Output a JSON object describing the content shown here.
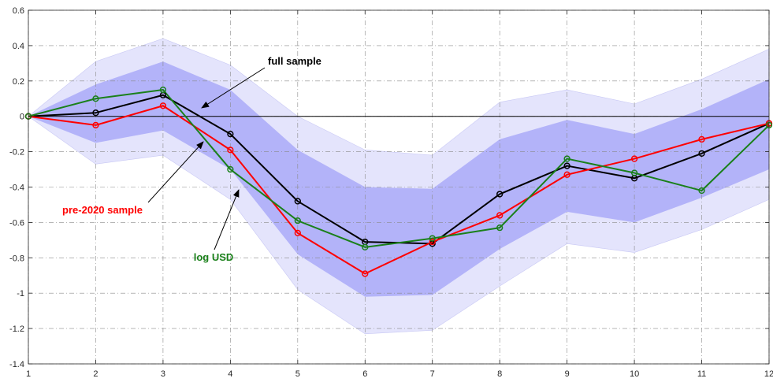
{
  "chart_data": {
    "type": "line",
    "x": [
      1,
      2,
      3,
      4,
      5,
      6,
      7,
      8,
      9,
      10,
      11,
      12
    ],
    "xlim": [
      1,
      12
    ],
    "ylim": [
      -1.4,
      0.6
    ],
    "xticks": [
      "1",
      "2",
      "3",
      "4",
      "5",
      "6",
      "7",
      "8",
      "9",
      "10",
      "11",
      "12"
    ],
    "yticks": [
      "0.6",
      "0.4",
      "0.2",
      "0",
      "-0.2",
      "-0.4",
      "-0.6",
      "-0.8",
      "-1",
      "-1.2",
      "-1.4"
    ],
    "grid": true,
    "bands": {
      "outer": {
        "upper": [
          0.0,
          0.31,
          0.44,
          0.29,
          0.0,
          -0.19,
          -0.22,
          0.08,
          0.15,
          0.07,
          0.21,
          0.38
        ],
        "lower": [
          0.0,
          -0.27,
          -0.22,
          -0.47,
          -0.98,
          -1.23,
          -1.21,
          -0.96,
          -0.72,
          -0.77,
          -0.64,
          -0.47
        ],
        "color": "#e4e4fc"
      },
      "inner": {
        "upper": [
          0.0,
          0.18,
          0.31,
          0.15,
          -0.19,
          -0.4,
          -0.41,
          -0.13,
          -0.02,
          -0.1,
          0.04,
          0.21
        ],
        "lower": [
          0.0,
          -0.15,
          -0.08,
          -0.3,
          -0.78,
          -1.02,
          -1.01,
          -0.75,
          -0.54,
          -0.6,
          -0.46,
          -0.3
        ],
        "color": "#b3b3f9"
      }
    },
    "series": [
      {
        "values": [
          0.0,
          0.02,
          0.12,
          -0.1,
          -0.48,
          -0.71,
          -0.72,
          -0.44,
          -0.28,
          -0.35,
          -0.21,
          -0.04
        ],
        "color": "#000000"
      },
      {
        "values": [
          0.0,
          -0.05,
          0.06,
          -0.19,
          -0.66,
          -0.89,
          -0.71,
          -0.56,
          -0.33,
          -0.24,
          -0.13,
          -0.04
        ],
        "color": "#ff0000"
      },
      {
        "values": [
          0.0,
          0.1,
          0.15,
          -0.3,
          -0.59,
          -0.74,
          -0.69,
          -0.63,
          -0.24,
          -0.32,
          -0.42,
          -0.05
        ],
        "color": "#1a801a"
      }
    ],
    "annotations": [
      {
        "text": "full sample",
        "color": "#000000"
      },
      {
        "text": "pre-2020 sample",
        "color": "#ff0000"
      },
      {
        "text": "log USD",
        "color": "#1a801a"
      }
    ]
  }
}
